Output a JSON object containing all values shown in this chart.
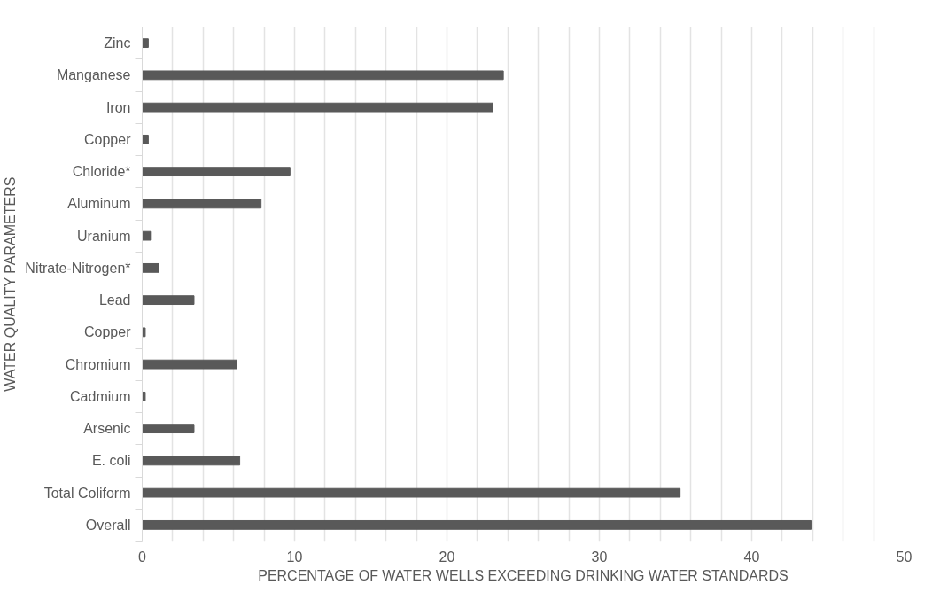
{
  "chart_data": {
    "type": "bar",
    "orientation": "horizontal",
    "categories": [
      "Zinc",
      "Manganese",
      "Iron",
      "Copper",
      "Chloride*",
      "Aluminum",
      "Uranium",
      "Nitrate-Nitrogen*",
      "Lead",
      "Copper",
      "Chromium",
      "Cadmium",
      "Arsenic",
      "E. coli",
      "Total Coliform",
      "Overall"
    ],
    "values": [
      0.4,
      23.7,
      23.0,
      0.4,
      9.7,
      7.8,
      0.6,
      1.1,
      3.4,
      0.2,
      6.2,
      0.2,
      3.4,
      6.4,
      35.3,
      43.9
    ],
    "color": "#595959",
    "xlabel": "PERCENTAGE OF WATER WELLS EXCEEDING DRINKING WATER STANDARDS",
    "ylabel": "WATER QUALITY PARAMETERS",
    "xlim": [
      0,
      50
    ],
    "xticks": [
      0,
      {
        "value": 2,
        "label": null
      },
      {
        "value": 4,
        "label": null
      },
      {
        "value": 6,
        "label": null
      },
      {
        "value": 8,
        "label": null
      },
      10,
      {
        "value": 12,
        "label": null
      },
      {
        "value": 14,
        "label": null
      },
      {
        "value": 16,
        "label": null
      },
      {
        "value": 18,
        "label": null
      },
      20,
      {
        "value": 22,
        "label": null
      },
      {
        "value": 24,
        "label": null
      },
      {
        "value": 26,
        "label": null
      },
      {
        "value": 28,
        "label": null
      },
      30,
      {
        "value": 32,
        "label": null
      },
      {
        "value": 34,
        "label": null
      },
      {
        "value": 36,
        "label": null
      },
      {
        "value": 38,
        "label": null
      },
      40,
      {
        "value": 42,
        "label": null
      },
      {
        "value": 44,
        "label": null
      },
      {
        "value": 46,
        "label": null
      },
      {
        "value": 48,
        "label": null
      },
      50
    ],
    "grid": "x"
  }
}
